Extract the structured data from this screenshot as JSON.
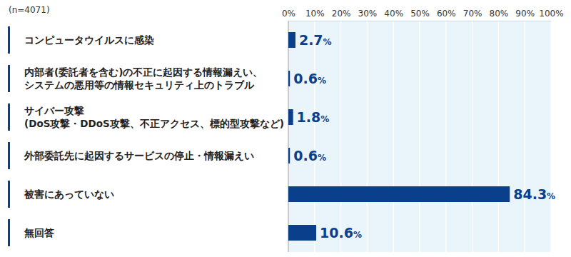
{
  "chart_data": {
    "type": "bar",
    "orientation": "horizontal",
    "subtitle": "(n=4071)",
    "categories": [
      "コンピュータウイルスに感染",
      "内部者(委託者を含む)の不正に起因する情報漏えい、\nシステムの悪用等の情報セキュリティ上のトラブル",
      "サイバー攻撃\n(DoS攻撃・DDoS攻撃、不正アクセス、標的型攻撃など)",
      "外部委託先に起因するサービスの停止・情報漏えい",
      "被害にあっていない",
      "無回答"
    ],
    "values": [
      2.7,
      0.6,
      1.8,
      0.6,
      84.3,
      10.6
    ],
    "value_labels": [
      "2.7%",
      "0.6%",
      "1.8%",
      "0.6%",
      "84.3%",
      "10.6%"
    ],
    "data_labels": true,
    "color": "#0a3f8c",
    "xlim": [
      0,
      100
    ],
    "xticks": [
      {
        "value": 0,
        "label": "0%"
      },
      {
        "value": 10,
        "label": "10%"
      },
      {
        "value": 20,
        "label": "20%"
      },
      {
        "value": 30,
        "label": "30%"
      },
      {
        "value": 40,
        "label": "40%"
      },
      {
        "value": 50,
        "label": "50%"
      },
      {
        "value": 60,
        "label": "60%"
      },
      {
        "value": 70,
        "label": "70%"
      },
      {
        "value": 80,
        "label": "80%"
      },
      {
        "value": 90,
        "label": "90%"
      },
      {
        "value": 100,
        "label": "100%"
      }
    ],
    "grid": true
  }
}
